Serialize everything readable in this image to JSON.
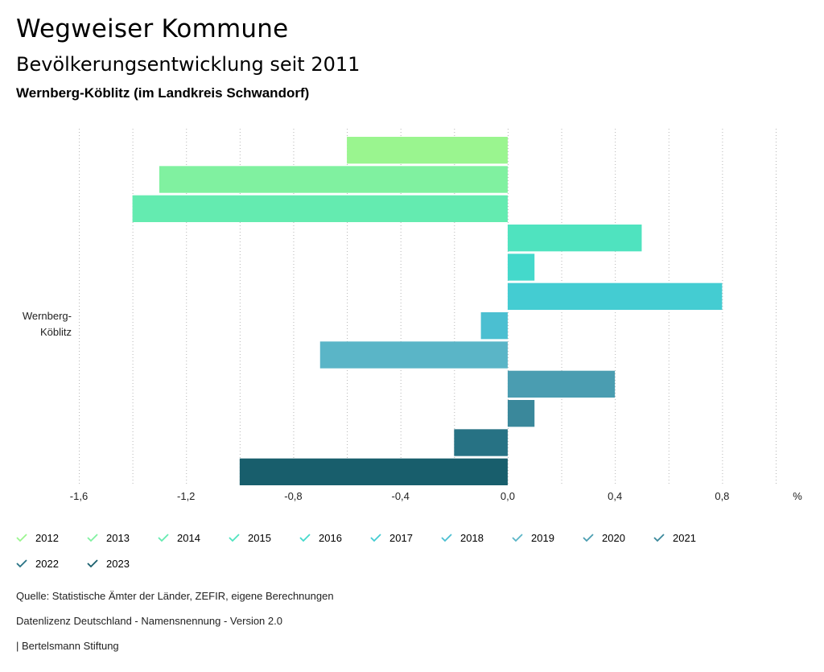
{
  "header": {
    "title": "Wegweiser Kommune",
    "subtitle": "Bevölkerungsentwicklung seit 2011",
    "place": "Wernberg-Köblitz (im Landkreis Schwandorf)"
  },
  "chart_data": {
    "type": "bar",
    "orientation": "horizontal",
    "category": "Wernberg-Köblitz",
    "category_lines": [
      "Wernberg-",
      "Köblitz"
    ],
    "unit_label": "%",
    "xlim": [
      -1.6,
      1.0
    ],
    "ticks": [
      -1.6,
      -1.4,
      -1.2,
      -1.0,
      -0.8,
      -0.6,
      -0.4,
      -0.2,
      0.0,
      0.2,
      0.4,
      0.6,
      0.8,
      1.0
    ],
    "tick_labels": [
      {
        "value": -1.6,
        "label": "-1,6"
      },
      {
        "value": -1.2,
        "label": "-1,2"
      },
      {
        "value": -0.8,
        "label": "-0,8"
      },
      {
        "value": -0.4,
        "label": "-0,4"
      },
      {
        "value": 0.0,
        "label": "0,0"
      },
      {
        "value": 0.4,
        "label": "0,4"
      },
      {
        "value": 0.8,
        "label": "0,8"
      }
    ],
    "series": [
      {
        "name": "2012",
        "value": -0.6,
        "color": "#9af58f"
      },
      {
        "name": "2013",
        "value": -1.3,
        "color": "#80f1a0"
      },
      {
        "name": "2014",
        "value": -1.4,
        "color": "#64ebb0"
      },
      {
        "name": "2015",
        "value": 0.5,
        "color": "#4fe3bf"
      },
      {
        "name": "2016",
        "value": 0.1,
        "color": "#44d9cb"
      },
      {
        "name": "2017",
        "value": 0.8,
        "color": "#44ccd2"
      },
      {
        "name": "2018",
        "value": -0.1,
        "color": "#4bbfd1"
      },
      {
        "name": "2019",
        "value": -0.7,
        "color": "#5ab5c7"
      },
      {
        "name": "2020",
        "value": 0.4,
        "color": "#4a9db1"
      },
      {
        "name": "2021",
        "value": 0.1,
        "color": "#3a889b"
      },
      {
        "name": "2022",
        "value": -0.2,
        "color": "#277284"
      },
      {
        "name": "2023",
        "value": -1.0,
        "color": "#185e6c"
      }
    ]
  },
  "footer": {
    "source": "Quelle: Statistische Ämter der Länder, ZEFIR, eigene Berechnungen",
    "license": "Datenlizenz Deutschland - Namensnennung - Version 2.0",
    "org": "| Bertelsmann Stiftung"
  }
}
